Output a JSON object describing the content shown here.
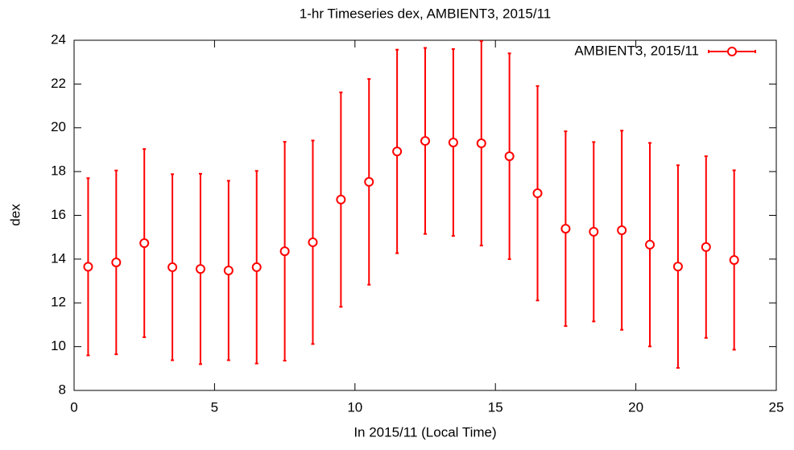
{
  "chart_data": {
    "type": "errorbar",
    "title": "1-hr Timeseries dex, AMBIENT3, 2015/11",
    "x_label": "In 2015/11 (Local Time)",
    "y_label": "dex",
    "xlim": [
      0,
      25
    ],
    "xticks": [
      0,
      5,
      10,
      15,
      20,
      25
    ],
    "ylim": [
      8,
      24
    ],
    "yticks": [
      8,
      10,
      12,
      14,
      16,
      18,
      20,
      22,
      24
    ],
    "legend_position": "top-right",
    "series": [
      {
        "name": "AMBIENT3, 2015/11",
        "color": "#ff0000",
        "x": [
          0.5,
          1.5,
          2.5,
          3.5,
          4.5,
          5.5,
          6.5,
          7.5,
          8.5,
          9.5,
          10.5,
          11.5,
          12.5,
          13.5,
          14.5,
          15.5,
          16.5,
          17.5,
          18.5,
          19.5,
          20.5,
          21.5,
          22.5,
          23.5
        ],
        "values": [
          13.65,
          13.85,
          14.73,
          13.63,
          13.55,
          13.48,
          13.63,
          14.36,
          14.77,
          16.72,
          17.53,
          18.92,
          19.4,
          19.33,
          19.29,
          18.7,
          17.01,
          15.39,
          15.25,
          15.32,
          14.66,
          13.66,
          14.55,
          13.96
        ],
        "errors": [
          4.05,
          4.2,
          4.3,
          4.25,
          4.35,
          4.1,
          4.4,
          5.0,
          4.65,
          4.9,
          4.7,
          4.65,
          4.25,
          4.27,
          4.67,
          4.7,
          4.9,
          4.45,
          4.1,
          4.55,
          4.65,
          4.63,
          4.15,
          4.1
        ]
      }
    ]
  }
}
